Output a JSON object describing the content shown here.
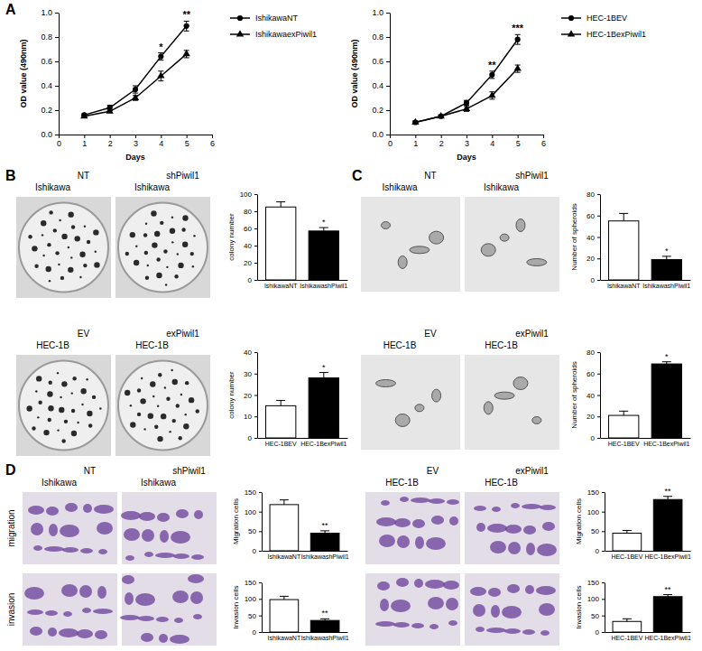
{
  "chart_data": [
    {
      "type": "line",
      "ylabel": "OD value (490nm)",
      "xlabel": "Days",
      "xlim": [
        0,
        6
      ],
      "xticks": [
        0,
        1,
        2,
        3,
        4,
        5,
        6
      ],
      "ylim": [
        0,
        1
      ],
      "yticks": [
        {
          "value": 0,
          "label": "0.0"
        },
        0.2,
        0.4,
        0.6,
        0.8,
        {
          "value": 1,
          "label": "1.0"
        }
      ],
      "x": [
        1,
        2,
        3,
        4,
        5
      ],
      "series": [
        {
          "name": "IshikawaNT",
          "color": "#000000",
          "marker": "circle",
          "values": [
            0.16,
            0.22,
            0.37,
            0.64,
            0.89
          ],
          "errors": [
            0.01,
            0.02,
            0.03,
            0.03,
            0.04
          ]
        },
        {
          "name": "IshikawaexPiwil1",
          "color": "#000000",
          "marker": "triangle",
          "values": [
            0.15,
            0.19,
            0.3,
            0.48,
            0.66
          ],
          "errors": [
            0.01,
            0.01,
            0.02,
            0.04,
            0.03
          ]
        }
      ],
      "legend": "right",
      "annotations": [
        {
          "x": 4,
          "text": "*"
        },
        {
          "x": 5,
          "text": "**"
        }
      ]
    },
    {
      "type": "line",
      "ylabel": "OD value (490nm)",
      "xlabel": "Days",
      "xlim": [
        0,
        6
      ],
      "xticks": [
        0,
        1,
        2,
        3,
        4,
        5,
        6
      ],
      "ylim": [
        0,
        1
      ],
      "yticks": [
        {
          "value": 0,
          "label": "0.0"
        },
        0.2,
        0.4,
        0.6,
        0.8,
        {
          "value": 1,
          "label": "1.0"
        }
      ],
      "x": [
        1,
        2,
        3,
        4,
        5
      ],
      "series": [
        {
          "name": "HEC-1BEV",
          "color": "#000000",
          "marker": "circle",
          "values": [
            0.1,
            0.15,
            0.26,
            0.49,
            0.78
          ],
          "errors": [
            0.01,
            0.01,
            0.02,
            0.03,
            0.04
          ]
        },
        {
          "name": "HEC-1BexPiwil1",
          "color": "#000000",
          "marker": "triangle",
          "values": [
            0.1,
            0.15,
            0.21,
            0.32,
            0.54
          ],
          "errors": [
            0.01,
            0.01,
            0.02,
            0.03,
            0.03
          ]
        }
      ],
      "legend": "right",
      "annotations": [
        {
          "x": 4,
          "text": "**"
        },
        {
          "x": 5,
          "text": "***"
        }
      ]
    },
    {
      "type": "bar",
      "ylabel": "colony number",
      "categories": [
        "IshikawaNT",
        "IshikawashPiwil1"
      ],
      "values": [
        85,
        57
      ],
      "errors": [
        6,
        4
      ],
      "colors": [
        "#ffffff",
        "#000000"
      ],
      "ylim": [
        0,
        100
      ],
      "yticks": [
        0,
        20,
        40,
        60,
        80,
        100
      ],
      "annotations": [
        {
          "index": 1,
          "text": "*"
        }
      ]
    },
    {
      "type": "bar",
      "ylabel": "colony number",
      "categories": [
        "HEC-1BEV",
        "HEC-1BexPiwil1"
      ],
      "values": [
        15,
        28
      ],
      "errors": [
        2.5,
        2.5
      ],
      "colors": [
        "#ffffff",
        "#000000"
      ],
      "ylim": [
        0,
        40
      ],
      "yticks": [
        0,
        10,
        20,
        30,
        40
      ],
      "annotations": [
        {
          "index": 1,
          "text": "*"
        }
      ]
    },
    {
      "type": "bar",
      "ylabel": "Number of spheroids",
      "categories": [
        "IshikawaNT",
        "IshikawashPiwil1"
      ],
      "values": [
        55,
        19
      ],
      "errors": [
        7,
        3
      ],
      "colors": [
        "#ffffff",
        "#000000"
      ],
      "ylim": [
        0,
        80
      ],
      "yticks": [
        0,
        20,
        40,
        60,
        80
      ],
      "annotations": [
        {
          "index": 1,
          "text": "*"
        }
      ]
    },
    {
      "type": "bar",
      "ylabel": "Number of spheroids",
      "categories": [
        "HEC-1BEV",
        "HEC-1BexPiwil1"
      ],
      "values": [
        21,
        69
      ],
      "errors": [
        4,
        2
      ],
      "colors": [
        "#ffffff",
        "#000000"
      ],
      "ylim": [
        0,
        80
      ],
      "yticks": [
        0,
        20,
        40,
        60,
        80
      ],
      "annotations": [
        {
          "index": 1,
          "text": "*"
        }
      ]
    },
    {
      "type": "bar",
      "ylabel": "Migration cells",
      "categories": [
        "IshikawaNT",
        "IshikawashPiwil1"
      ],
      "values": [
        118,
        45
      ],
      "errors": [
        12,
        6
      ],
      "colors": [
        "#ffffff",
        "#000000"
      ],
      "ylim": [
        0,
        150
      ],
      "yticks": [
        0,
        50,
        100,
        150
      ],
      "annotations": [
        {
          "index": 1,
          "text": "**"
        }
      ]
    },
    {
      "type": "bar",
      "ylabel": "Invasion cells",
      "categories": [
        "IshikawaNT",
        "IshikawashPiwil1"
      ],
      "values": [
        98,
        35
      ],
      "errors": [
        10,
        5
      ],
      "colors": [
        "#ffffff",
        "#000000"
      ],
      "ylim": [
        0,
        150
      ],
      "yticks": [
        0,
        50,
        100,
        150
      ],
      "annotations": [
        {
          "index": 1,
          "text": "**"
        }
      ]
    },
    {
      "type": "bar",
      "ylabel": "Migration cells",
      "categories": [
        "HEC-1BEV",
        "HEC-1BexPiwil1"
      ],
      "values": [
        45,
        131
      ],
      "errors": [
        7,
        8
      ],
      "colors": [
        "#ffffff",
        "#000000"
      ],
      "ylim": [
        0,
        150
      ],
      "yticks": [
        0,
        50,
        100,
        150
      ],
      "annotations": [
        {
          "index": 1,
          "text": "**"
        }
      ]
    },
    {
      "type": "bar",
      "ylabel": "Invasion cells",
      "categories": [
        "HEC-1BEV",
        "HEC-1BexPiwil1"
      ],
      "values": [
        32,
        107
      ],
      "errors": [
        8,
        6
      ],
      "colors": [
        "#ffffff",
        "#000000"
      ],
      "ylim": [
        0,
        150
      ],
      "yticks": [
        0,
        50,
        100,
        150
      ],
      "annotations": [
        {
          "index": 1,
          "text": "**"
        }
      ]
    }
  ],
  "panel_labels": [
    "A",
    "B",
    "C",
    "D"
  ],
  "image_labels": [
    {
      "top": "NT",
      "bottom": "Ishikawa"
    },
    {
      "top": "shPiwil1",
      "bottom": "Ishikawa"
    },
    {
      "top": "EV",
      "bottom": "HEC-1B"
    },
    {
      "top": "exPiwil1",
      "bottom": "HEC-1B"
    },
    {
      "top": "NT",
      "bottom": "Ishikawa"
    },
    {
      "top": "shPiwil1",
      "bottom": "Ishikawa"
    },
    {
      "top": "EV",
      "bottom": "HEC-1B"
    },
    {
      "top": "exPiwil1",
      "bottom": "HEC-1B"
    },
    {
      "top": "NT",
      "bottom": "Ishikawa"
    },
    {
      "top": "shPiwil1",
      "bottom": "Ishikawa"
    },
    {
      "top": "EV",
      "bottom": "HEC-1B"
    },
    {
      "top": "exPiwil1",
      "bottom": "HEC-1B"
    }
  ],
  "row_labels": [
    "migration",
    "invasion"
  ]
}
